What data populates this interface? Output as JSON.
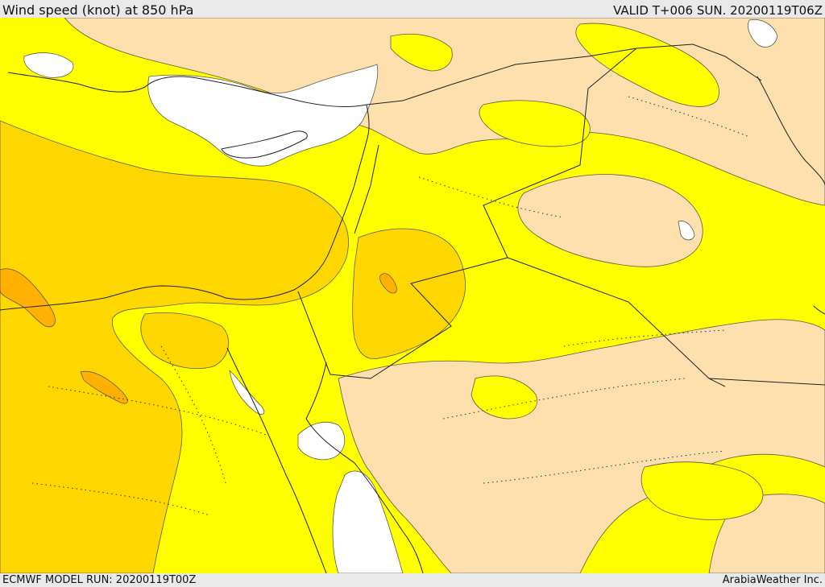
{
  "header": {
    "title": "Wind speed (knot) at 850 hPa",
    "valid_time": "VALID T+006 SUN. 20200119T06Z"
  },
  "footer": {
    "model_run": "ECMWF MODEL RUN: 20200119T00Z",
    "credit": "ArabiaWeather Inc."
  },
  "colors": {
    "band_lowest": "#ffffff",
    "band_low": "#fde0ae",
    "band_mid": "#ffff00",
    "band_high": "#ffd700",
    "band_highest": "#ffb000",
    "border_line": "#222222",
    "contour_line": "#5a5a4a"
  }
}
